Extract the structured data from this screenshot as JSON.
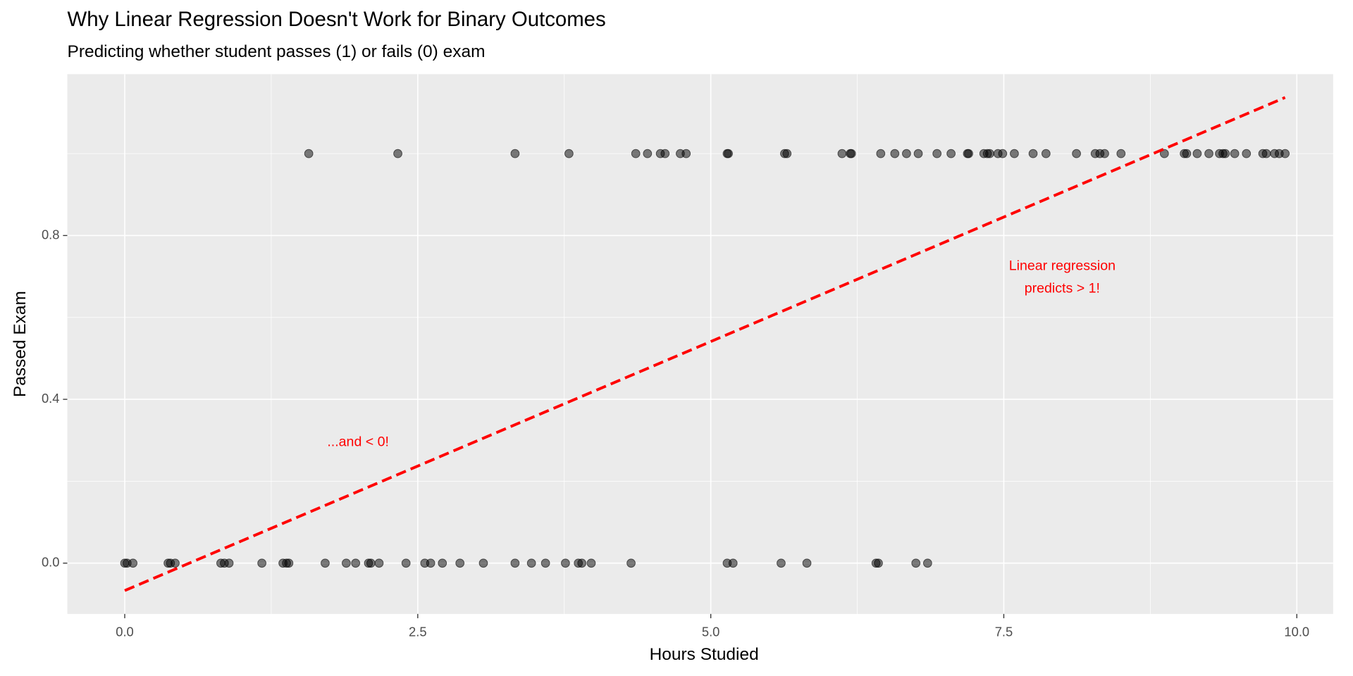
{
  "chart_data": {
    "type": "scatter",
    "title": "Why Linear Regression Doesn't Work for Binary Outcomes",
    "subtitle": "Predicting whether student passes (1) or fails (0) exam",
    "x_label": "Hours Studied",
    "y_label": "Passed Exam",
    "point_color": "#000000",
    "x": [
      1.57,
      2.33,
      3.33,
      3.79,
      4.36,
      4.46,
      4.57,
      4.61,
      4.74,
      4.79,
      5.14,
      5.15,
      5.63,
      5.65,
      6.12,
      6.19,
      6.2,
      6.45,
      6.57,
      6.67,
      6.77,
      6.93,
      7.05,
      7.19,
      7.2,
      7.33,
      7.36,
      7.38,
      7.45,
      7.49,
      7.59,
      7.75,
      7.86,
      8.12,
      8.28,
      8.32,
      8.36,
      8.5,
      8.87,
      9.04,
      9.06,
      9.15,
      9.25,
      9.34,
      9.37,
      9.39,
      9.47,
      9.57,
      9.71,
      9.74,
      9.81,
      9.85,
      9.9,
      0,
      0.02,
      0.07,
      0.37,
      0.39,
      0.43,
      0.82,
      0.85,
      0.89,
      1.17,
      1.35,
      1.38,
      1.4,
      1.71,
      1.89,
      1.97,
      2.08,
      2.1,
      2.17,
      2.4,
      2.56,
      2.61,
      2.71,
      2.86,
      3.06,
      3.33,
      3.47,
      3.59,
      3.76,
      3.87,
      3.9,
      3.98,
      4.32,
      5.14,
      5.19,
      5.6,
      5.82,
      6.41,
      6.43,
      6.75,
      6.85
    ],
    "values": [
      1,
      1,
      1,
      1,
      1,
      1,
      1,
      1,
      1,
      1,
      1,
      1,
      1,
      1,
      1,
      1,
      1,
      1,
      1,
      1,
      1,
      1,
      1,
      1,
      1,
      1,
      1,
      1,
      1,
      1,
      1,
      1,
      1,
      1,
      1,
      1,
      1,
      1,
      1,
      1,
      1,
      1,
      1,
      1,
      1,
      1,
      1,
      1,
      1,
      1,
      1,
      1,
      1,
      0,
      0,
      0,
      0,
      0,
      0,
      0,
      0,
      0,
      0,
      0,
      0,
      0,
      0,
      0,
      0,
      0,
      0,
      0,
      0,
      0,
      0,
      0,
      0,
      0,
      0,
      0,
      0,
      0,
      0,
      0,
      0,
      0,
      0,
      0,
      0,
      0,
      0,
      0,
      0,
      0
    ],
    "fit": {
      "x": [
        0,
        9.9
      ],
      "values": [
        -0.067,
        1.137
      ],
      "color": "#ff0000"
    },
    "annotations": [
      {
        "lines": [
          "Linear regression",
          "predicts > 1!"
        ],
        "color": "#ff0000"
      },
      {
        "lines": [
          "...and < 0!"
        ],
        "color": "#ff0000"
      }
    ],
    "xlim": [
      -0.49,
      10.31
    ],
    "ylim": [
      -0.124,
      1.194
    ],
    "xticks": [
      {
        "value": 0,
        "label": "0.0"
      },
      {
        "value": 2.5,
        "label": "2.5"
      },
      {
        "value": 5,
        "label": "5.0"
      },
      {
        "value": 7.5,
        "label": "7.5"
      },
      {
        "value": 10,
        "label": "10.0"
      }
    ],
    "yticks": [
      {
        "value": 0,
        "label": "0.0"
      },
      {
        "value": 0.4,
        "label": "0.4"
      },
      {
        "value": 0.8,
        "label": "0.8"
      }
    ],
    "xticks_minor": [
      1.25,
      3.75,
      6.25,
      8.75
    ],
    "yticks_minor": [
      0.2,
      0.6,
      1.0
    ],
    "grid": true
  }
}
